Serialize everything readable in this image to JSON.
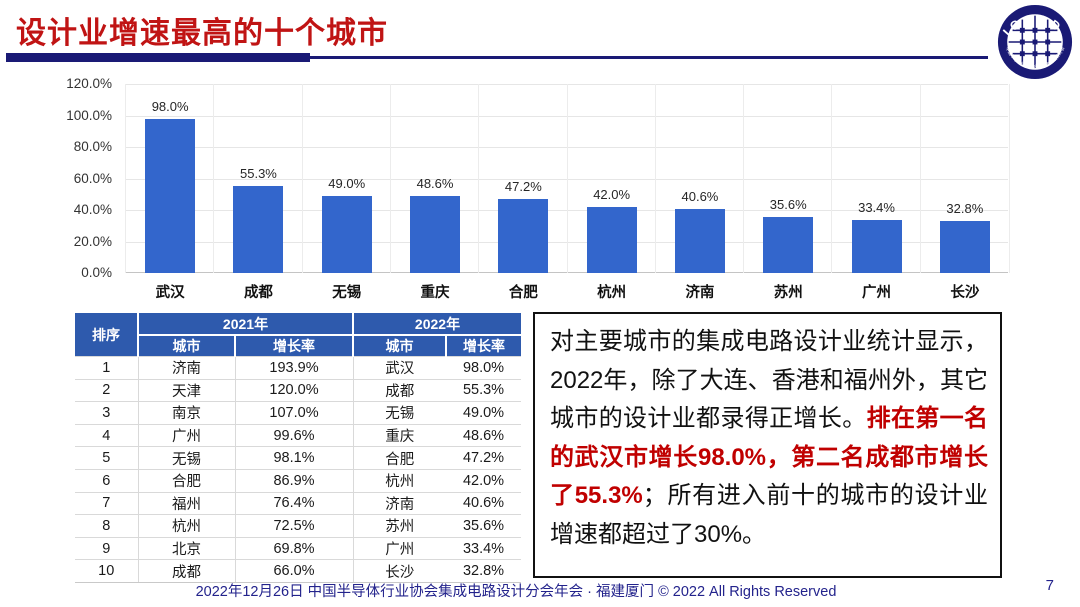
{
  "slide": {
    "title": "设计业增速最高的十个城市",
    "footer": "2022年12月26日 中国半导体行业协会集成电路设计分会年会 · 福建厦门 © 2022 All Rights Reserved",
    "page_number": "7"
  },
  "colors": {
    "title_red": "#C01414",
    "rule_navy": "#1A1A75",
    "bar_blue": "#3366CC",
    "table_header_blue": "#2E5AAD",
    "note_red": "#C00000",
    "footer_navy": "#23238C"
  },
  "logo": {
    "text": "ICCAD",
    "arc_text": "中国半导体行业协会集成电路设计分会"
  },
  "chart_data": {
    "type": "bar",
    "title": "",
    "xlabel": "",
    "ylabel": "",
    "categories": [
      "武汉",
      "成都",
      "无锡",
      "重庆",
      "合肥",
      "杭州",
      "济南",
      "苏州",
      "广州",
      "长沙"
    ],
    "values": [
      98.0,
      55.3,
      49.0,
      48.6,
      47.2,
      42.0,
      40.6,
      35.6,
      33.4,
      32.8
    ],
    "bar_labels": [
      "98.0%",
      "55.3%",
      "49.0%",
      "48.6%",
      "47.2%",
      "42.0%",
      "40.6%",
      "35.6%",
      "33.4%",
      "32.8%"
    ],
    "y_ticks": [
      "0.0%",
      "20.0%",
      "40.0%",
      "60.0%",
      "80.0%",
      "100.0%",
      "120.0%"
    ],
    "ylim": [
      0,
      120
    ],
    "grid": true,
    "legend_position": "none",
    "bar_color": "#3366CC"
  },
  "table": {
    "header": {
      "rank": "排序",
      "y2021": "2021年",
      "y2022": "2022年",
      "city": "城市",
      "rate": "增长率"
    },
    "rows": [
      [
        "1",
        "济南",
        "193.9%",
        "武汉",
        "98.0%"
      ],
      [
        "2",
        "天津",
        "120.0%",
        "成都",
        "55.3%"
      ],
      [
        "3",
        "南京",
        "107.0%",
        "无锡",
        "49.0%"
      ],
      [
        "4",
        "广州",
        "99.6%",
        "重庆",
        "48.6%"
      ],
      [
        "5",
        "无锡",
        "98.1%",
        "合肥",
        "47.2%"
      ],
      [
        "6",
        "合肥",
        "86.9%",
        "杭州",
        "42.0%"
      ],
      [
        "7",
        "福州",
        "76.4%",
        "济南",
        "40.6%"
      ],
      [
        "8",
        "杭州",
        "72.5%",
        "苏州",
        "35.6%"
      ],
      [
        "9",
        "北京",
        "69.8%",
        "广州",
        "33.4%"
      ],
      [
        "10",
        "成都",
        "66.0%",
        "长沙",
        "32.8%"
      ]
    ]
  },
  "note": {
    "part1": "对主要城市的集成电路设计业统计显示，2022年，除了大连、香港和福州外，其它城市的设计业都录得正增长。",
    "part2_red": "排在第一名的武汉市增长98.0%，第二名成都市增长了55.3%",
    "part3": "；所有进入前十的城市的设计业增速都超过了30%。"
  }
}
